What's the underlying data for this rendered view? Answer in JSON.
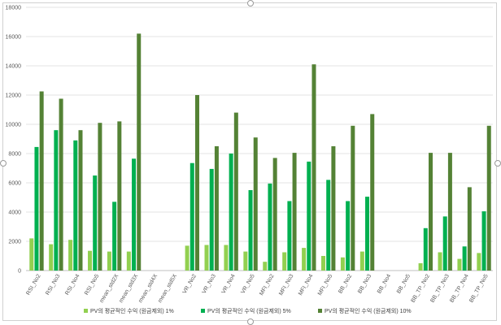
{
  "chart_data": {
    "type": "bar",
    "categories": [
      "RSI_No2",
      "RSI_No3",
      "RSI_No4",
      "RSI_No5",
      "mean_std2X",
      "mean_std3X",
      "mean_std4X",
      "mean_std5X",
      "VR_No2",
      "VR_No3",
      "VR_No4",
      "VR_No5",
      "MFI_No2",
      "MFI_No3",
      "MFI_No4",
      "MFI_No5",
      "BB_No2",
      "BB_No3",
      "BB_No4",
      "BB_No5",
      "BB_TP_No2",
      "BB_TP_No3",
      "BB_TP_No4",
      "BB_TP_No5"
    ],
    "series": [
      {
        "name": "PV의 평균적인 수익 (원금제외) 1%",
        "color": "#92d050",
        "values": [
          2200,
          1800,
          2100,
          1350,
          1300,
          1300,
          0,
          0,
          1700,
          1750,
          1750,
          1300,
          600,
          1250,
          1550,
          1000,
          900,
          1300,
          0,
          0,
          500,
          1250,
          800,
          1200
        ]
      },
      {
        "name": "PV의 평균적인 수익 (원금제외) 5%",
        "color": "#00b050",
        "values": [
          8450,
          9600,
          8900,
          6500,
          4700,
          7650,
          0,
          0,
          7350,
          6950,
          8000,
          5500,
          5950,
          4750,
          7450,
          6200,
          4750,
          5050,
          0,
          0,
          2900,
          3700,
          1650,
          4050
        ]
      },
      {
        "name": "PV의 평균적인 수익 (원금제외) 10%",
        "color": "#548235",
        "values": [
          12250,
          11750,
          9600,
          10100,
          10200,
          16200,
          0,
          0,
          12000,
          8500,
          10800,
          9100,
          7700,
          8050,
          14100,
          8500,
          9900,
          10700,
          0,
          0,
          8050,
          8050,
          5700,
          9900
        ]
      }
    ],
    "yticks": [
      "0",
      "2000",
      "4000",
      "6000",
      "8000",
      "10000",
      "12000",
      "14000",
      "16000",
      "18000"
    ],
    "ylim": [
      0,
      18000
    ],
    "grid": true,
    "legend": "bottom"
  }
}
